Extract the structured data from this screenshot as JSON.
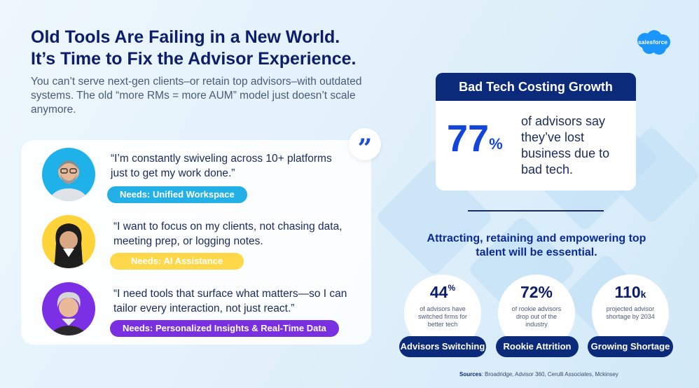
{
  "headline": {
    "line1": "Old Tools Are Failing in a New World.",
    "line2": "It’s Time to Fix the Advisor Experience."
  },
  "intro": "You can’t serve next-gen clients–or retain top advisors–with outdated systems. The old “more RMs = more AUM” model just doesn’t scale anymore.",
  "logo": {
    "text": "salesforce",
    "icon": "salesforce-cloud-logo",
    "color": "#1b96ff"
  },
  "quote_icon": "quote-mark-icon",
  "personas": [
    {
      "quote": "“I’m constantly swiveling across 10+ platforms just to get my work done.”",
      "need": "Needs: Unified Workspace",
      "pill_color": "#22b0e6",
      "avatar_bg": "#1fb2ea"
    },
    {
      "quote": "“I want to focus on my clients, not chasing data, meeting prep, or logging notes.",
      "need": "Needs: AI Assistance",
      "pill_color": "#ffd84a",
      "avatar_bg": "#ffd43b"
    },
    {
      "quote": "“I need tools that surface what matters—so I can tailor every interaction, not just react.”",
      "need": "Needs: Personalized Insights & Real-Time Data",
      "pill_color": "#7a2fe0",
      "avatar_bg": "#7b30e6"
    }
  ],
  "stat_card": {
    "header": "Bad Tech Costing Growth",
    "number": "77",
    "unit": "%",
    "text": "of advisors say they’ve lost business due to bad tech."
  },
  "talent": "Attracting, retaining and empowering top talent will be essential.",
  "circles": [
    {
      "number": "44",
      "unit": "%",
      "desc": "of advisors have switched firms for better tech",
      "label": "Advisors Switching"
    },
    {
      "number": "72%",
      "unit": "",
      "desc": "of rookie advisors drop out of the industry",
      "label": "Rookie Attrition"
    },
    {
      "number": "110",
      "unit": "k",
      "desc": "projected advisor shortage by 2034",
      "label": "Growing Shortage"
    }
  ],
  "sources": {
    "label": "Sources",
    "text": ": Broadridge, Advisor 360, Cerulli Associates, Mckinsey"
  }
}
